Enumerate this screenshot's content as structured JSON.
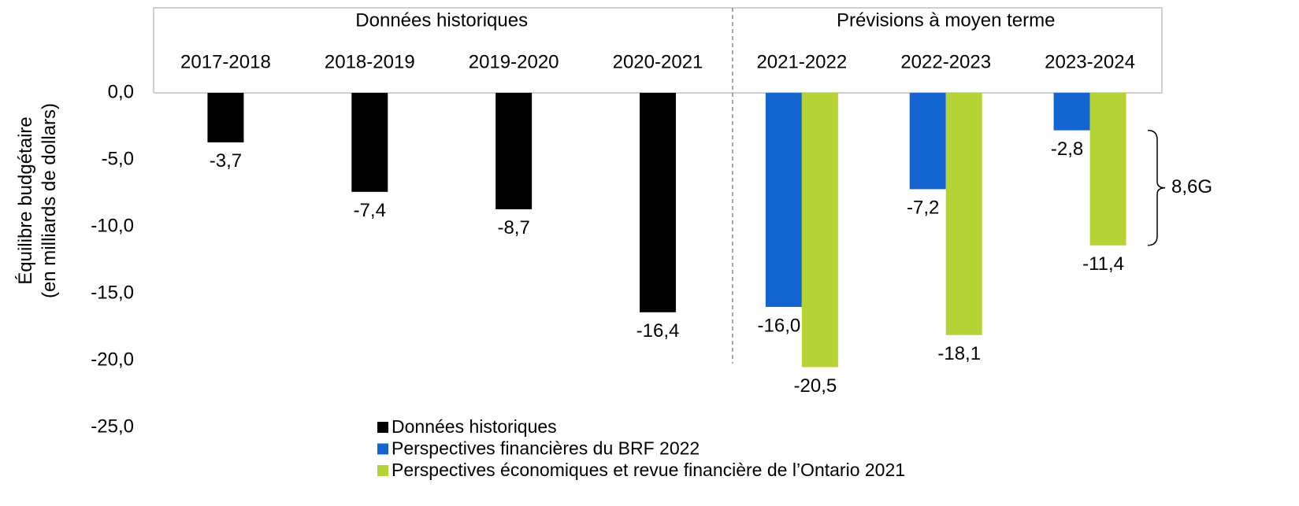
{
  "chart_data": {
    "type": "bar",
    "ylabel": [
      "Équilibre budgétaire",
      "(en milliards de dollars)"
    ],
    "category_groups": [
      "Données historiques",
      "Prévisions à moyen terme"
    ],
    "categories": [
      "2017-2018",
      "2018-2019",
      "2019-2020",
      "2020-2021",
      "2021-2022",
      "2022-2023",
      "2023-2024"
    ],
    "series": [
      {
        "name": "Données historiques",
        "color": "#000000",
        "values": [
          -3.7,
          -7.4,
          -8.7,
          -16.4,
          null,
          null,
          null
        ],
        "value_labels": [
          "-3,7",
          "-7,4",
          "-8,7",
          "-16,4",
          null,
          null,
          null
        ]
      },
      {
        "name": "Perspectives financières du BRF 2022",
        "color": "#1464d2",
        "values": [
          null,
          null,
          null,
          null,
          -16.0,
          -7.2,
          -2.8
        ],
        "value_labels": [
          null,
          null,
          null,
          null,
          "-16,0",
          "-7,2",
          "-2,8"
        ]
      },
      {
        "name": "Perspectives économiques et revue financière de l’Ontario 2021",
        "color": "#b5d335",
        "values": [
          null,
          null,
          null,
          null,
          -20.5,
          -18.1,
          -11.4
        ],
        "value_labels": [
          null,
          null,
          null,
          null,
          "-20,5",
          "-18,1",
          "-11,4"
        ]
      }
    ],
    "ylim": [
      -25,
      0
    ],
    "yticks": [
      {
        "value": 0,
        "label": "0,0"
      },
      {
        "value": -5,
        "label": "-5,0"
      },
      {
        "value": -10,
        "label": "-10,0"
      },
      {
        "value": -15,
        "label": "-15,0"
      },
      {
        "value": -20,
        "label": "-20,0"
      },
      {
        "value": -25,
        "label": "-25,0"
      }
    ],
    "annotations": [
      {
        "text": "8,6G"
      }
    ]
  }
}
